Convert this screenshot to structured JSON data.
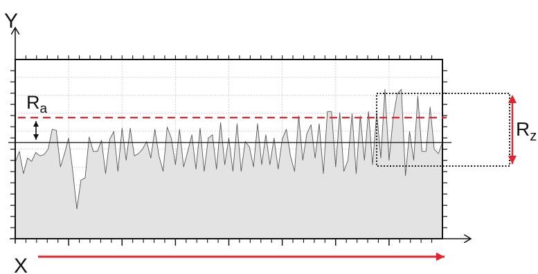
{
  "labels": {
    "y_axis": "Y",
    "x_axis": "X",
    "ra_main": "R",
    "ra_sub": "a",
    "rz_main": "R",
    "rz_sub": "z"
  },
  "colors": {
    "profile_fill": "#e3e3e3",
    "profile_stroke": "#555555",
    "frame": "#111111",
    "grid": "#c8c8c8",
    "accent_red": "#e8202a",
    "mean_line": "#111111"
  },
  "profile": {
    "y": [
      -0.9,
      -0.4,
      -1.4,
      -0.7,
      -0.85,
      -0.45,
      -0.6,
      -0.55,
      -0.3,
      0.6,
      0.55,
      -1.1,
      -0.5,
      0.2,
      -1.3,
      -3.0,
      -1.7,
      -1.6,
      0.25,
      -0.4,
      -0.4,
      0.1,
      -1.4,
      0.15,
      0.5,
      -1.3,
      0.65,
      -0.8,
      0.65,
      -0.6,
      -0.5,
      -0.3,
      0.05,
      -0.7,
      0.6,
      -0.6,
      -1.3,
      0.7,
      0.2,
      -1.0,
      0.6,
      -1.1,
      -0.4,
      0.35,
      -1.2,
      0.65,
      -1.3,
      0.2,
      0.35,
      -1.2,
      0.9,
      -1.0,
      0.2,
      -1.3,
      0.85,
      -1.3,
      0.05,
      -0.2,
      -1.1,
      0.85,
      -1.0,
      0.35,
      -1.0,
      0.2,
      -1.2,
      0.15,
      0.6,
      -0.6,
      -1.3,
      1.2,
      -0.8,
      0.4,
      0.8,
      -0.7,
      0.85,
      -1.4,
      1.4,
      1.4,
      -1.1,
      1.35,
      -1.3,
      -0.8,
      1.3,
      -1.4,
      1.2,
      -0.8,
      1.4,
      -1.0,
      1.35,
      -0.7,
      2.4,
      -0.8,
      1.1,
      2.2,
      2.4,
      -1.5,
      0.5,
      -0.8,
      2.1,
      -0.4,
      -0.4,
      1.6,
      -0.3,
      -0.5,
      0.0
    ]
  }
}
